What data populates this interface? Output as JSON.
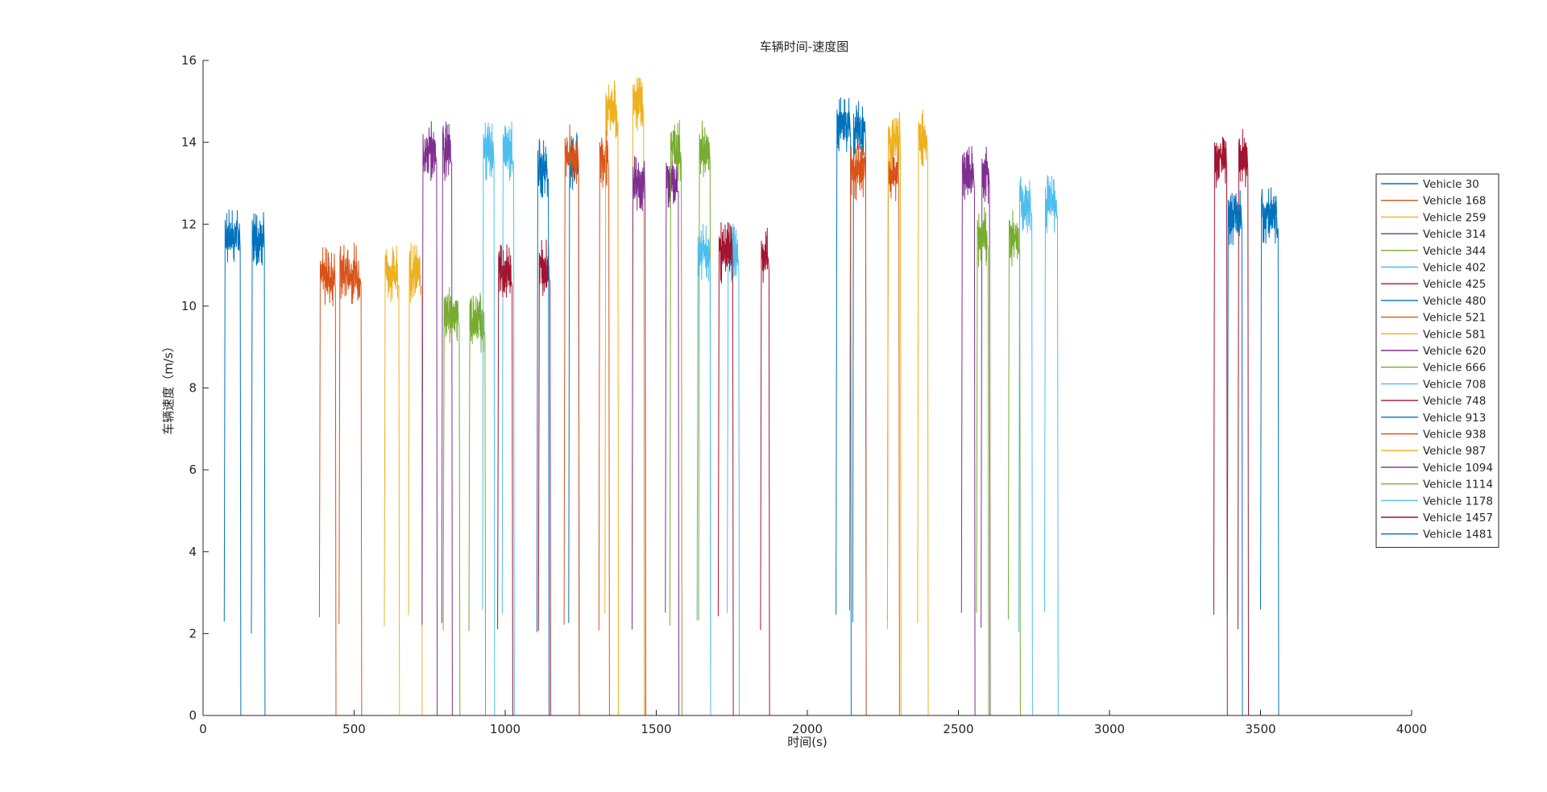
{
  "chart_data": {
    "type": "line",
    "title": "车辆时间-速度图",
    "xlabel": "时间(s)",
    "ylabel": "车辆速度（m/s）",
    "xlim": [
      0,
      4000
    ],
    "ylim": [
      0,
      16
    ],
    "xticks": [
      0,
      500,
      1000,
      1500,
      2000,
      2500,
      3000,
      3500,
      4000
    ],
    "yticks": [
      0,
      2,
      4,
      6,
      8,
      10,
      12,
      14,
      16
    ],
    "grid": false,
    "legend_position": "right",
    "palette": [
      "#0072BD",
      "#D95319",
      "#EDB120",
      "#7E2F8E",
      "#77AC30",
      "#4DBEEE",
      "#A2142F"
    ],
    "series": [
      {
        "name": "Vehicle 30",
        "segments": [
          [
            70,
            125,
            11.7
          ],
          [
            160,
            205,
            11.7
          ]
        ]
      },
      {
        "name": "Vehicle 168",
        "segments": [
          [
            385,
            440,
            10.7
          ],
          [
            450,
            525,
            10.8
          ]
        ]
      },
      {
        "name": "Vehicle 259",
        "segments": [
          [
            600,
            650,
            10.8
          ],
          [
            680,
            725,
            10.8
          ]
        ]
      },
      {
        "name": "Vehicle 314",
        "segments": [
          [
            725,
            775,
            13.8
          ],
          [
            790,
            825,
            13.8
          ]
        ]
      },
      {
        "name": "Vehicle 344",
        "segments": [
          [
            795,
            850,
            9.8
          ],
          [
            880,
            935,
            9.6
          ]
        ]
      },
      {
        "name": "Vehicle 402",
        "segments": [
          [
            925,
            965,
            13.8
          ],
          [
            990,
            1030,
            13.8
          ]
        ]
      },
      {
        "name": "Vehicle 425",
        "segments": [
          [
            975,
            1025,
            10.8
          ],
          [
            1110,
            1150,
            10.9
          ]
        ]
      },
      {
        "name": "Vehicle 480",
        "segments": [
          [
            1105,
            1145,
            13.4
          ],
          [
            1210,
            1245,
            13.5
          ]
        ]
      },
      {
        "name": "Vehicle 521",
        "segments": [
          [
            1195,
            1245,
            13.7
          ],
          [
            1310,
            1345,
            13.6
          ]
        ]
      },
      {
        "name": "Vehicle 581",
        "segments": [
          [
            1330,
            1375,
            14.8
          ],
          [
            1420,
            1460,
            15.0
          ]
        ]
      },
      {
        "name": "Vehicle 620",
        "segments": [
          [
            1420,
            1465,
            13.0
          ],
          [
            1530,
            1575,
            13.1
          ]
        ]
      },
      {
        "name": "Vehicle 666",
        "segments": [
          [
            1545,
            1585,
            13.8
          ],
          [
            1640,
            1680,
            13.8
          ]
        ]
      },
      {
        "name": "Vehicle 708",
        "segments": [
          [
            1635,
            1680,
            11.3
          ],
          [
            1735,
            1775,
            11.3
          ]
        ]
      },
      {
        "name": "Vehicle 748",
        "segments": [
          [
            1705,
            1755,
            11.3
          ],
          [
            1845,
            1875,
            11.2
          ]
        ]
      },
      {
        "name": "Vehicle 913",
        "segments": [
          [
            2095,
            2145,
            14.4
          ],
          [
            2150,
            2195,
            14.3
          ]
        ]
      },
      {
        "name": "Vehicle 938",
        "segments": [
          [
            2140,
            2195,
            13.3
          ],
          [
            2265,
            2305,
            13.3
          ]
        ]
      },
      {
        "name": "Vehicle 987",
        "segments": [
          [
            2265,
            2310,
            14.0
          ],
          [
            2365,
            2400,
            14.1
          ]
        ]
      },
      {
        "name": "Vehicle 1094",
        "segments": [
          [
            2510,
            2555,
            13.2
          ],
          [
            2575,
            2605,
            13.2
          ]
        ]
      },
      {
        "name": "Vehicle 1114",
        "segments": [
          [
            2560,
            2600,
            11.7
          ],
          [
            2665,
            2705,
            11.7
          ]
        ]
      },
      {
        "name": "Vehicle 1178",
        "segments": [
          [
            2700,
            2745,
            12.5
          ],
          [
            2785,
            2830,
            12.5
          ]
        ]
      },
      {
        "name": "Vehicle 1457",
        "segments": [
          [
            3345,
            3390,
            13.6
          ],
          [
            3425,
            3460,
            13.6
          ]
        ]
      },
      {
        "name": "Vehicle 1481",
        "segments": [
          [
            3390,
            3440,
            12.2
          ],
          [
            3500,
            3560,
            12.2
          ]
        ]
      }
    ]
  }
}
